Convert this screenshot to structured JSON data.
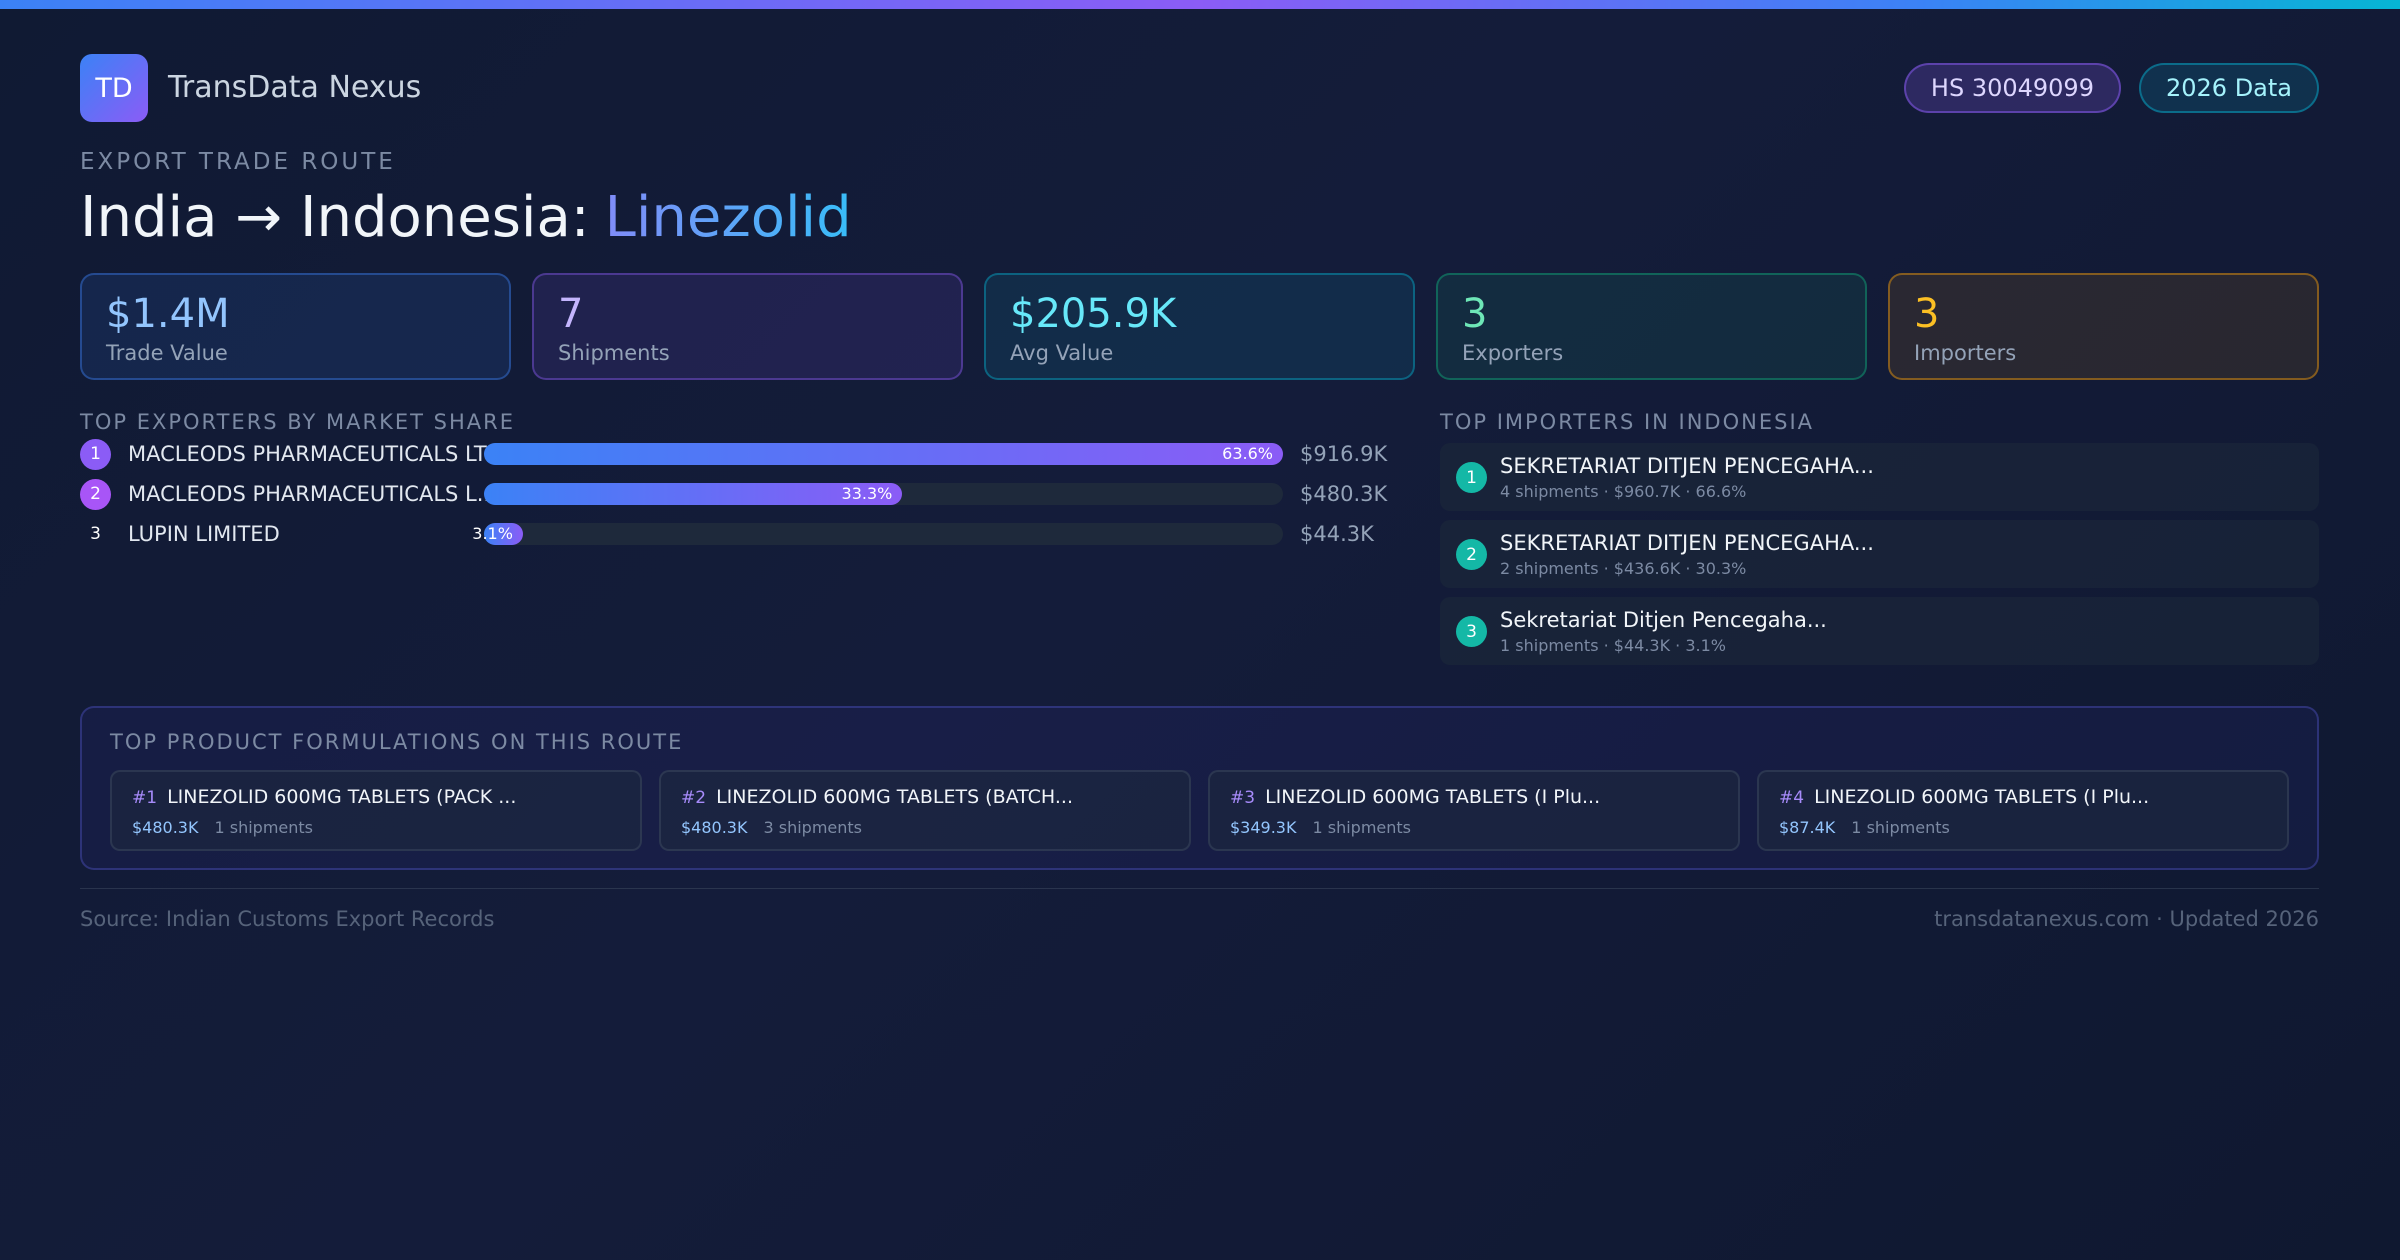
{
  "header": {
    "logo": "TD",
    "brand": "TransData Nexus",
    "badges": [
      "HS 30049099",
      "2026 Data"
    ]
  },
  "title": {
    "eyebrow": "EXPORT TRADE ROUTE",
    "route": "India → Indonesia:",
    "product": "Linezolid"
  },
  "kpis": [
    {
      "value": "$1.4M",
      "label": "Trade Value"
    },
    {
      "value": "7",
      "label": "Shipments"
    },
    {
      "value": "$205.9K",
      "label": "Avg Value"
    },
    {
      "value": "3",
      "label": "Exporters"
    },
    {
      "value": "3",
      "label": "Importers"
    }
  ],
  "exporters": {
    "heading": "TOP EXPORTERS BY MARKET SHARE",
    "rows": [
      {
        "rank": 1,
        "name": "MACLEODS PHARMACEUTICALS LTD",
        "share": 63.6,
        "share_label": "63.6%",
        "value": "$916.9K"
      },
      {
        "rank": 2,
        "name": "MACLEODS PHARMACEUTICALS L...",
        "share": 33.3,
        "share_label": "33.3%",
        "value": "$480.3K"
      },
      {
        "rank": 3,
        "name": "LUPIN LIMITED",
        "share": 3.1,
        "share_label": "3.1%",
        "value": "$44.3K"
      }
    ]
  },
  "importers": {
    "heading": "TOP IMPORTERS IN INDONESIA",
    "rows": [
      {
        "rank": 1,
        "name": "SEKRETARIAT DITJEN PENCEGAHA...",
        "detail": "4 shipments · $960.7K · 66.6%"
      },
      {
        "rank": 2,
        "name": "SEKRETARIAT DITJEN PENCEGAHA...",
        "detail": "2 shipments · $436.6K · 30.3%"
      },
      {
        "rank": 3,
        "name": "Sekretariat Ditjen Pencegaha...",
        "detail": "1 shipments · $44.3K · 3.1%"
      }
    ]
  },
  "formulations": {
    "heading": "TOP PRODUCT FORMULATIONS ON THIS ROUTE",
    "items": [
      {
        "rank": "#1",
        "name": "LINEZOLID 600MG TABLETS (PACK ...",
        "value": "$480.3K",
        "shipments": "1 shipments"
      },
      {
        "rank": "#2",
        "name": "LINEZOLID 600MG TABLETS (BATCH...",
        "value": "$480.3K",
        "shipments": "3 shipments"
      },
      {
        "rank": "#3",
        "name": "LINEZOLID 600MG TABLETS (I Plu...",
        "value": "$349.3K",
        "shipments": "1 shipments"
      },
      {
        "rank": "#4",
        "name": "LINEZOLID 600MG TABLETS (I Plu...",
        "value": "$87.4K",
        "shipments": "1 shipments"
      }
    ]
  },
  "footer": {
    "source": "Source: Indian Customs Export Records",
    "site": "transdatanexus.com · Updated 2026"
  }
}
